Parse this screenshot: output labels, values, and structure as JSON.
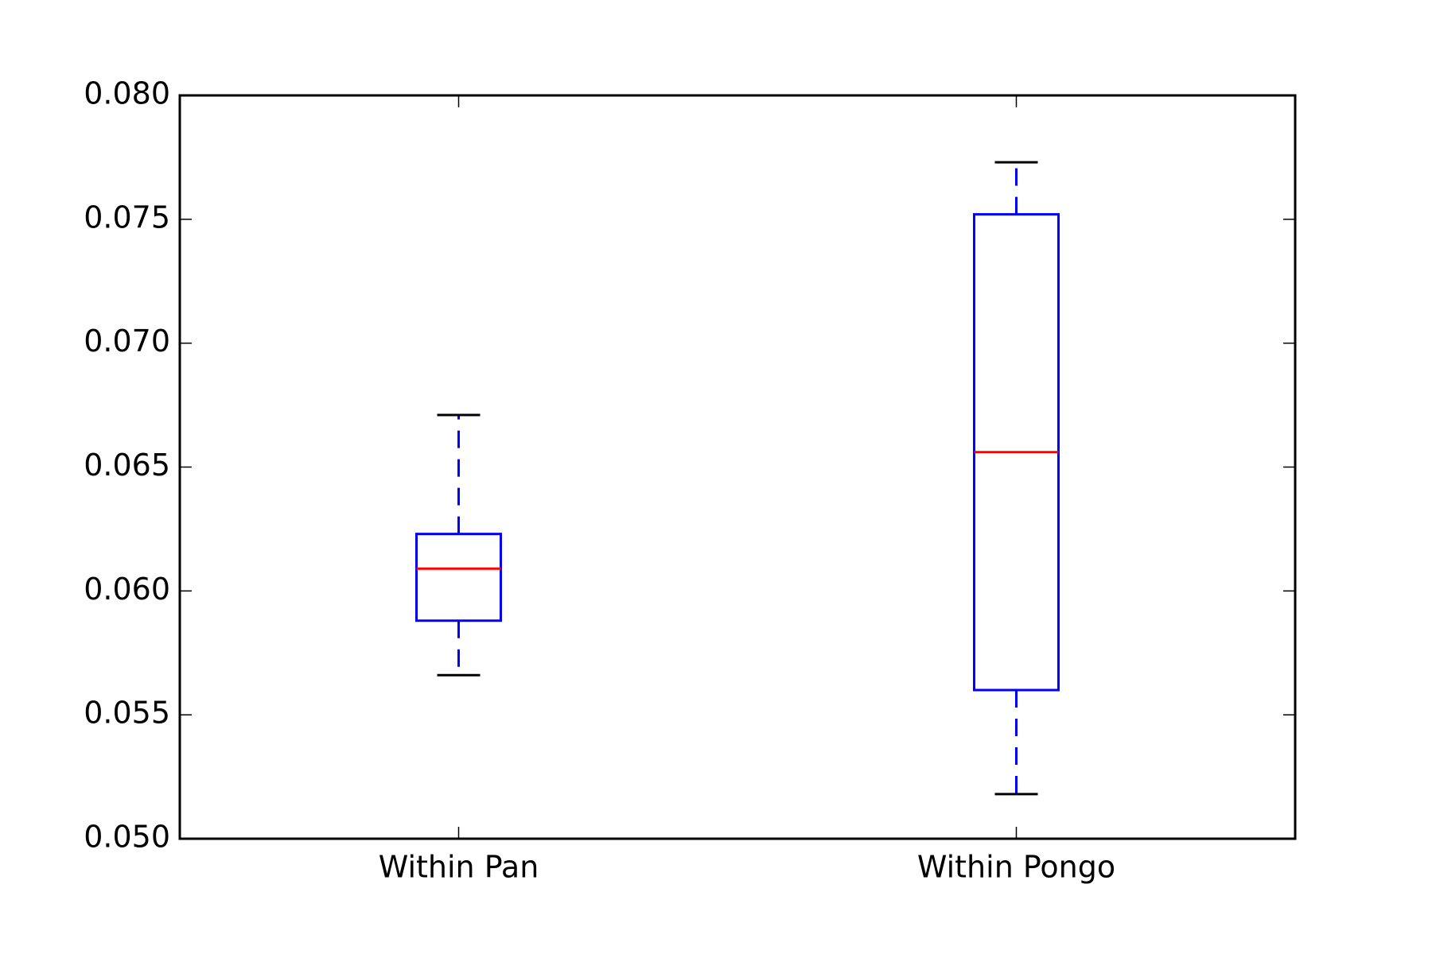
{
  "chart_data": {
    "type": "box",
    "title": "",
    "xlabel": "",
    "ylabel": "",
    "ylim": [
      0.05,
      0.08
    ],
    "yticks": [
      "0.050",
      "0.055",
      "0.060",
      "0.065",
      "0.070",
      "0.075",
      "0.080"
    ],
    "grid": false,
    "categories": [
      "Within Pan",
      "Within Pongo"
    ],
    "boxes": [
      {
        "category": "Within Pan",
        "whisker_low": 0.0566,
        "q1": 0.0588,
        "median": 0.0609,
        "q3": 0.0623,
        "whisker_high": 0.0671
      },
      {
        "category": "Within Pongo",
        "whisker_low": 0.0518,
        "q1": 0.056,
        "median": 0.0656,
        "q3": 0.0752,
        "whisker_high": 0.0773
      }
    ],
    "colors": {
      "box": "#0000ff",
      "median": "#ff0000",
      "cap": "#000000",
      "axes": "#000000"
    }
  }
}
